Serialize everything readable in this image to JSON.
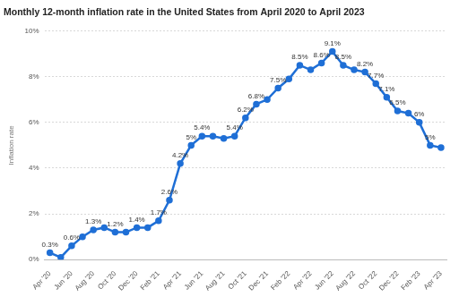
{
  "chart_data": {
    "type": "line",
    "title": "Monthly 12-month inflation rate in the United States from April 2020 to April 2023",
    "y_label": "Inflation rate",
    "categories": [
      "Apr '20",
      null,
      "Jun '20",
      null,
      "Aug '20",
      null,
      "Oct '20",
      null,
      "Dec '20",
      null,
      "Feb '21",
      null,
      "Apr '21",
      null,
      "Jun '21",
      null,
      "Aug '21",
      null,
      "Oct '21",
      null,
      "Dec '21",
      null,
      "Feb '22",
      null,
      "Apr '22",
      null,
      "Jun '22",
      null,
      "Aug '22",
      null,
      "Oct '22",
      null,
      "Dec '22",
      null,
      "Feb '23",
      null,
      "Apr '23"
    ],
    "values": [
      0.3,
      0.1,
      0.6,
      1.0,
      1.3,
      1.4,
      1.2,
      1.2,
      1.4,
      1.4,
      1.7,
      2.6,
      4.2,
      5.0,
      5.4,
      5.4,
      5.3,
      5.4,
      6.2,
      6.8,
      7.0,
      7.5,
      7.9,
      8.5,
      8.3,
      8.6,
      9.1,
      8.5,
      8.3,
      8.2,
      7.7,
      7.1,
      6.5,
      6.4,
      6.0,
      5.0,
      4.9
    ],
    "value_labels": [
      "0.3%",
      null,
      "0.6%",
      null,
      "1.3%",
      null,
      "1.2%",
      null,
      "1.4%",
      null,
      "1.7%",
      "2.6%",
      "4.2%",
      "5%",
      "5.4%",
      null,
      null,
      "5.4%",
      "6.2%",
      "6.8%",
      null,
      "7.5%",
      null,
      "8.5%",
      null,
      "8.6%",
      "9.1%",
      "8.5%",
      null,
      "8.2%",
      "7.7%",
      "7.1%",
      "6.5%",
      null,
      "6%",
      "5%",
      null
    ],
    "data_labels": true,
    "color": "#1f6fd6",
    "marker": "circle",
    "ylim": [
      0,
      10
    ],
    "yticks": [
      {
        "value": 0,
        "label": "0%"
      },
      {
        "value": 2,
        "label": "2%"
      },
      {
        "value": 4,
        "label": "4%"
      },
      {
        "value": 6,
        "label": "6%"
      },
      {
        "value": 8,
        "label": "8%"
      },
      {
        "value": 10,
        "label": "10%"
      }
    ],
    "grid": true
  }
}
